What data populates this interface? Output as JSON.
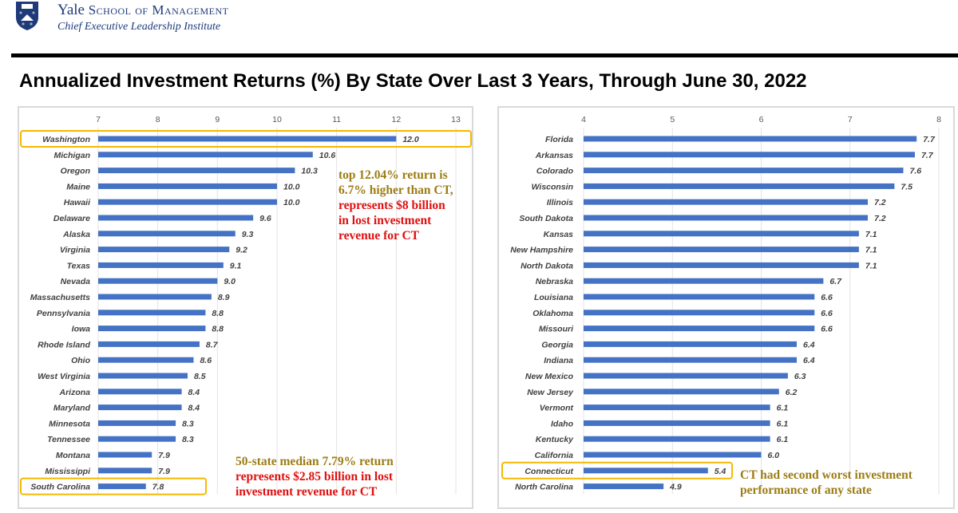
{
  "header": {
    "brand": "Yale",
    "school": "School of Management",
    "institute": "Chief Executive Leadership Institute"
  },
  "title": "Annualized Investment Returns (%) By State Over Last 3 Years, Through June 30, 2022",
  "colors": {
    "bar": "#4472c4",
    "highlight": "#f5b800",
    "olive": "#9c7d14",
    "red": "#e01010"
  },
  "chart_data": [
    {
      "type": "bar",
      "orientation": "horizontal",
      "xlim": [
        7,
        13
      ],
      "ticks": [
        7,
        8,
        9,
        10,
        11,
        12,
        13
      ],
      "grid": true,
      "categories": [
        "Washington",
        "Michigan",
        "Oregon",
        "Maine",
        "Hawaii",
        "Delaware",
        "Alaska",
        "Virginia",
        "Texas",
        "Nevada",
        "Massachusetts",
        "Pennsylvania",
        "Iowa",
        "Rhode Island",
        "Ohio",
        "West Virginia",
        "Arizona",
        "Maryland",
        "Minnesota",
        "Tennessee",
        "Montana",
        "Mississippi",
        "South Carolina"
      ],
      "values": [
        12.0,
        10.6,
        10.3,
        10.0,
        10.0,
        9.6,
        9.3,
        9.2,
        9.1,
        9.0,
        8.9,
        8.8,
        8.8,
        8.7,
        8.6,
        8.5,
        8.4,
        8.4,
        8.3,
        8.3,
        7.9,
        7.9,
        7.8
      ],
      "labels": [
        "12.0",
        "10.6",
        "10.3",
        "10.0",
        "10.0",
        "9.6",
        "9.3",
        "9.2",
        "9.1",
        "9.0",
        "8.9",
        "8.8",
        "8.8",
        "8.7",
        "8.6",
        "8.5",
        "8.4",
        "8.4",
        "8.3",
        "8.3",
        "7.9",
        "7.9",
        "7.8"
      ],
      "highlighted": [
        "Washington",
        "South Carolina"
      ]
    },
    {
      "type": "bar",
      "orientation": "horizontal",
      "xlim": [
        4,
        8
      ],
      "ticks": [
        4,
        5,
        6,
        7,
        8
      ],
      "grid": true,
      "categories": [
        "Florida",
        "Arkansas",
        "Colorado",
        "Wisconsin",
        "Illinois",
        "South Dakota",
        "Kansas",
        "New Hampshire",
        "North Dakota",
        "Nebraska",
        "Louisiana",
        "Oklahoma",
        "Missouri",
        "Georgia",
        "Indiana",
        "New Mexico",
        "New Jersey",
        "Vermont",
        "Idaho",
        "Kentucky",
        "California",
        "Connecticut",
        "North Carolina"
      ],
      "values": [
        7.75,
        7.73,
        7.6,
        7.5,
        7.2,
        7.2,
        7.1,
        7.1,
        7.1,
        6.7,
        6.6,
        6.6,
        6.6,
        6.4,
        6.4,
        6.3,
        6.2,
        6.1,
        6.1,
        6.1,
        6.0,
        5.4,
        4.9
      ],
      "labels": [
        "7.7",
        "7.7",
        "7.6",
        "7.5",
        "7.2",
        "7.2",
        "7.1",
        "7.1",
        "7.1",
        "6.7",
        "6.6",
        "6.6",
        "6.6",
        "6.4",
        "6.4",
        "6.3",
        "6.2",
        "6.1",
        "6.1",
        "6.1",
        "6.0",
        "5.4",
        "4.9"
      ],
      "highlighted": [
        "Connecticut"
      ]
    }
  ],
  "annotations": {
    "top": {
      "olive": [
        "top 12.04% return is",
        "6.7% higher than CT,"
      ],
      "red": [
        "represents $8 billion",
        "in lost investment",
        "revenue for CT"
      ]
    },
    "median": {
      "olive": [
        "50-state median 7.79% return"
      ],
      "red": [
        "represents $2.85 billion in lost",
        "investment revenue for CT"
      ]
    },
    "ct": {
      "olive": [
        "CT had second worst investment",
        "performance of any state"
      ]
    }
  }
}
